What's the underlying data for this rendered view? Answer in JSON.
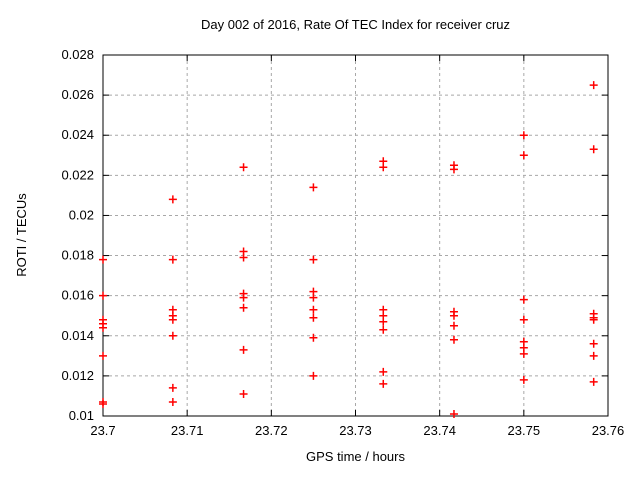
{
  "window": {
    "background": "#ffffff"
  },
  "chart_data": {
    "type": "scatter",
    "title": "Day 002 of 2016, Rate Of TEC Index for receiver cruz",
    "xlabel": "GPS time / hours",
    "ylabel": "ROTI / TECUs",
    "xlim": [
      23.7,
      23.76
    ],
    "ylim": [
      0.01,
      0.028
    ],
    "xticks": {
      "values": [
        23.7,
        23.71,
        23.72,
        23.73,
        23.74,
        23.75,
        23.76
      ],
      "labels": [
        "23.7",
        "23.71",
        "23.72",
        "23.73",
        "23.74",
        "23.75",
        "23.76"
      ]
    },
    "yticks": {
      "values": [
        0.01,
        0.012,
        0.014,
        0.016,
        0.018,
        0.02,
        0.022,
        0.024,
        0.026,
        0.028
      ],
      "labels": [
        "0.01",
        "0.012",
        "0.014",
        "0.016",
        "0.018",
        "0.02",
        "0.022",
        "0.024",
        "0.026",
        "0.028"
      ]
    },
    "grid": true,
    "grid_style": "dashed",
    "legend": "none",
    "marker": {
      "shape": "plus",
      "color": "#ff0000",
      "size": 8,
      "stroke_width": 1.5
    },
    "frame_color": "#000000",
    "grid_color": "#a8a8a8",
    "series": [
      {
        "name": "ROTI",
        "points": [
          [
            23.7,
            0.0178
          ],
          [
            23.7,
            0.016
          ],
          [
            23.7,
            0.0148
          ],
          [
            23.7,
            0.0146
          ],
          [
            23.7,
            0.0144
          ],
          [
            23.7,
            0.013
          ],
          [
            23.7,
            0.0107
          ],
          [
            23.7,
            0.0106
          ],
          [
            23.7083,
            0.0208
          ],
          [
            23.7083,
            0.0178
          ],
          [
            23.7083,
            0.0153
          ],
          [
            23.7083,
            0.015
          ],
          [
            23.7083,
            0.0148
          ],
          [
            23.7083,
            0.014
          ],
          [
            23.7083,
            0.0114
          ],
          [
            23.7083,
            0.0107
          ],
          [
            23.7167,
            0.0224
          ],
          [
            23.7167,
            0.0182
          ],
          [
            23.7167,
            0.0179
          ],
          [
            23.7167,
            0.0161
          ],
          [
            23.7167,
            0.0159
          ],
          [
            23.7167,
            0.0154
          ],
          [
            23.7167,
            0.0133
          ],
          [
            23.7167,
            0.0111
          ],
          [
            23.725,
            0.0214
          ],
          [
            23.725,
            0.0178
          ],
          [
            23.725,
            0.0162
          ],
          [
            23.725,
            0.0159
          ],
          [
            23.725,
            0.0153
          ],
          [
            23.725,
            0.0149
          ],
          [
            23.725,
            0.0139
          ],
          [
            23.725,
            0.012
          ],
          [
            23.7333,
            0.0227
          ],
          [
            23.7333,
            0.0224
          ],
          [
            23.7333,
            0.0153
          ],
          [
            23.7333,
            0.015
          ],
          [
            23.7333,
            0.0147
          ],
          [
            23.7333,
            0.0143
          ],
          [
            23.7333,
            0.0122
          ],
          [
            23.7333,
            0.0116
          ],
          [
            23.7417,
            0.0225
          ],
          [
            23.7417,
            0.0223
          ],
          [
            23.7417,
            0.0152
          ],
          [
            23.7417,
            0.015
          ],
          [
            23.7417,
            0.0145
          ],
          [
            23.7417,
            0.0138
          ],
          [
            23.7417,
            0.0101
          ],
          [
            23.75,
            0.024
          ],
          [
            23.75,
            0.023
          ],
          [
            23.75,
            0.0158
          ],
          [
            23.75,
            0.0148
          ],
          [
            23.75,
            0.0137
          ],
          [
            23.75,
            0.0134
          ],
          [
            23.75,
            0.0131
          ],
          [
            23.75,
            0.0118
          ],
          [
            23.7583,
            0.0265
          ],
          [
            23.7583,
            0.0233
          ],
          [
            23.7583,
            0.0151
          ],
          [
            23.7583,
            0.0149
          ],
          [
            23.7583,
            0.0148
          ],
          [
            23.7583,
            0.0136
          ],
          [
            23.7583,
            0.013
          ],
          [
            23.7583,
            0.0117
          ]
        ]
      }
    ]
  }
}
